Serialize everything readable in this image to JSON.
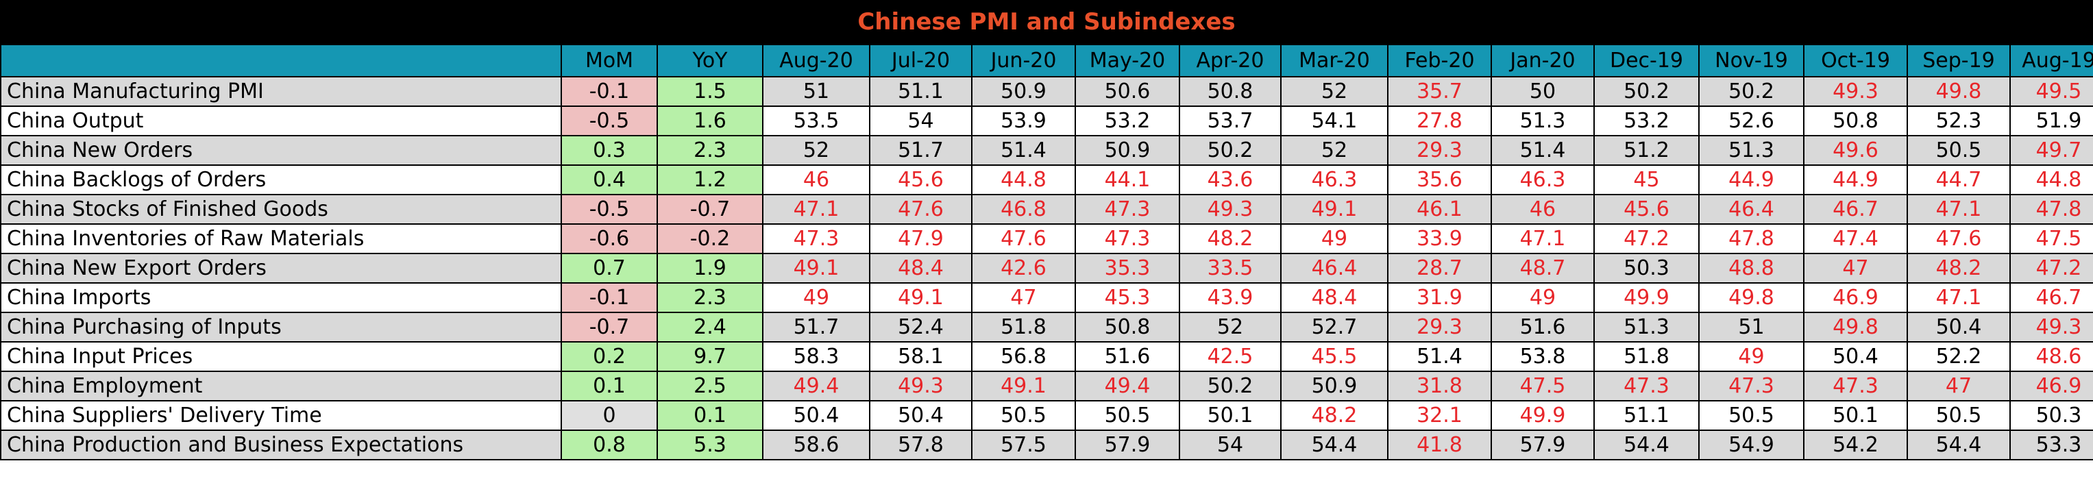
{
  "title": "Chinese PMI and Subindexes",
  "colors": {
    "header_bg": "#1597b3",
    "title_color": "#e8502a",
    "positive_bg": "#b7f0a8",
    "negative_bg": "#efc0c0",
    "below_50_text": "#e8262a"
  },
  "chart_data": {
    "type": "table",
    "title": "Chinese PMI and Subindexes",
    "columns": [
      "",
      "MoM",
      "YoY",
      "Aug-20",
      "Jul-20",
      "Jun-20",
      "May-20",
      "Apr-20",
      "Mar-20",
      "Feb-20",
      "Jan-20",
      "Dec-19",
      "Nov-19",
      "Oct-19",
      "Sep-19",
      "Aug-19"
    ],
    "rows": [
      {
        "name": "China Manufacturing PMI",
        "mom": "-0.1",
        "yoy": "1.5",
        "values": [
          "51",
          "51.1",
          "50.9",
          "50.6",
          "50.8",
          "52",
          "35.7",
          "50",
          "50.2",
          "50.2",
          "49.3",
          "49.8",
          "49.5"
        ]
      },
      {
        "name": "China Output",
        "mom": "-0.5",
        "yoy": "1.6",
        "values": [
          "53.5",
          "54",
          "53.9",
          "53.2",
          "53.7",
          "54.1",
          "27.8",
          "51.3",
          "53.2",
          "52.6",
          "50.8",
          "52.3",
          "51.9"
        ]
      },
      {
        "name": "China New Orders",
        "mom": "0.3",
        "yoy": "2.3",
        "values": [
          "52",
          "51.7",
          "51.4",
          "50.9",
          "50.2",
          "52",
          "29.3",
          "51.4",
          "51.2",
          "51.3",
          "49.6",
          "50.5",
          "49.7"
        ]
      },
      {
        "name": "China Backlogs of Orders",
        "mom": "0.4",
        "yoy": "1.2",
        "values": [
          "46",
          "45.6",
          "44.8",
          "44.1",
          "43.6",
          "46.3",
          "35.6",
          "46.3",
          "45",
          "44.9",
          "44.9",
          "44.7",
          "44.8"
        ]
      },
      {
        "name": "China Stocks of Finished Goods",
        "mom": "-0.5",
        "yoy": "-0.7",
        "values": [
          "47.1",
          "47.6",
          "46.8",
          "47.3",
          "49.3",
          "49.1",
          "46.1",
          "46",
          "45.6",
          "46.4",
          "46.7",
          "47.1",
          "47.8"
        ]
      },
      {
        "name": "China Inventories of Raw Materials",
        "mom": "-0.6",
        "yoy": "-0.2",
        "values": [
          "47.3",
          "47.9",
          "47.6",
          "47.3",
          "48.2",
          "49",
          "33.9",
          "47.1",
          "47.2",
          "47.8",
          "47.4",
          "47.6",
          "47.5"
        ]
      },
      {
        "name": "China New Export Orders",
        "mom": "0.7",
        "yoy": "1.9",
        "values": [
          "49.1",
          "48.4",
          "42.6",
          "35.3",
          "33.5",
          "46.4",
          "28.7",
          "48.7",
          "50.3",
          "48.8",
          "47",
          "48.2",
          "47.2"
        ]
      },
      {
        "name": "China Imports",
        "mom": "-0.1",
        "yoy": "2.3",
        "values": [
          "49",
          "49.1",
          "47",
          "45.3",
          "43.9",
          "48.4",
          "31.9",
          "49",
          "49.9",
          "49.8",
          "46.9",
          "47.1",
          "46.7"
        ]
      },
      {
        "name": "China Purchasing of Inputs",
        "mom": "-0.7",
        "yoy": "2.4",
        "values": [
          "51.7",
          "52.4",
          "51.8",
          "50.8",
          "52",
          "52.7",
          "29.3",
          "51.6",
          "51.3",
          "51",
          "49.8",
          "50.4",
          "49.3"
        ]
      },
      {
        "name": "China Input Prices",
        "mom": "0.2",
        "yoy": "9.7",
        "values": [
          "58.3",
          "58.1",
          "56.8",
          "51.6",
          "42.5",
          "45.5",
          "51.4",
          "53.8",
          "51.8",
          "49",
          "50.4",
          "52.2",
          "48.6"
        ]
      },
      {
        "name": "China Employment",
        "mom": "0.1",
        "yoy": "2.5",
        "values": [
          "49.4",
          "49.3",
          "49.1",
          "49.4",
          "50.2",
          "50.9",
          "31.8",
          "47.5",
          "47.3",
          "47.3",
          "47.3",
          "47",
          "46.9"
        ]
      },
      {
        "name": "China Suppliers' Delivery Time",
        "mom": "0",
        "yoy": "0.1",
        "values": [
          "50.4",
          "50.4",
          "50.5",
          "50.5",
          "50.1",
          "48.2",
          "32.1",
          "49.9",
          "51.1",
          "50.5",
          "50.1",
          "50.5",
          "50.3"
        ]
      },
      {
        "name": "China Production and Business Expectations",
        "mom": "0.8",
        "yoy": "5.3",
        "values": [
          "58.6",
          "57.8",
          "57.5",
          "57.9",
          "54",
          "54.4",
          "41.8",
          "57.9",
          "54.4",
          "54.9",
          "54.2",
          "54.4",
          "53.3"
        ]
      }
    ]
  }
}
